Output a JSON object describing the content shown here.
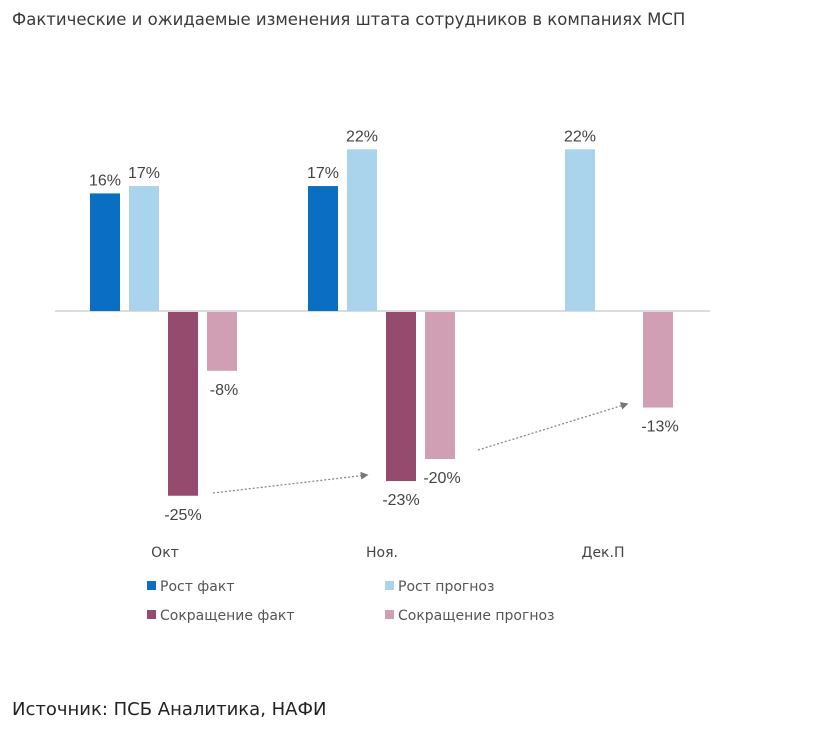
{
  "title": "Фактические и ожидаемые изменения штата сотрудников в компаниях МСП",
  "source": "Источник: ПСБ Аналитика, НАФИ",
  "chart_data": {
    "type": "bar",
    "title": "Фактические и ожидаемые изменения штата сотрудников в компаниях МСП",
    "categories": [
      "Окт",
      "Ноя.",
      "Дек.П"
    ],
    "series": [
      {
        "name": "Рост факт",
        "color": "#0a6fc2",
        "values": [
          16,
          17,
          null
        ],
        "labels": [
          "16%",
          "17%",
          ""
        ]
      },
      {
        "name": "Рост прогноз",
        "color": "#aad3ec",
        "values": [
          17,
          22,
          22
        ],
        "labels": [
          "17%",
          "22%",
          "22%"
        ]
      },
      {
        "name": "Сокращение факт",
        "color": "#954b6d",
        "values": [
          -25,
          -23,
          null
        ],
        "labels": [
          "-25%",
          "-23%",
          ""
        ]
      },
      {
        "name": "Сокращение прогноз",
        "color": "#d19fb4",
        "values": [
          -8,
          -20,
          -13
        ],
        "labels": [
          "-8%",
          "-20%",
          "-13%"
        ]
      }
    ],
    "annotations": [
      "dotted trend arrow from Окт Сокращение факт to Ноя. Сокращение факт",
      "dotted trend arrow from Ноя. Сокращение прогноз to Дек.П Сокращение прогноз"
    ],
    "legend_position": "bottom",
    "grid": false,
    "ylim": [
      -25,
      22
    ]
  }
}
